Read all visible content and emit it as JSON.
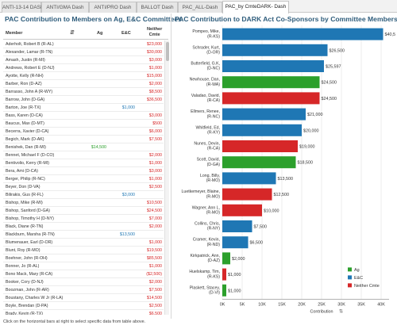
{
  "tabs": [
    {
      "label": "ANTI-13-14 DASH",
      "active": false
    },
    {
      "label": "ANTI/GMA Dash",
      "active": false
    },
    {
      "label": "ANTI/PRO Dash",
      "active": false
    },
    {
      "label": "BALLOT Dash",
      "active": false
    },
    {
      "label": "PAC_ALL-Dash",
      "active": false
    },
    {
      "label": "PAC_by CmteDARK- Dash",
      "active": true
    }
  ],
  "left_panel": {
    "title": "PAC Contribution to Members on Ag, E&C Committees",
    "columns": {
      "member": "Member",
      "ag": "Ag",
      "ec": "E&C",
      "neither": "Neither Cmte"
    },
    "sort_icon": "sort-icon",
    "rows": [
      {
        "name": "Aderholt, Robert B (R-AL)",
        "ag": "",
        "ec": "",
        "neither": "$23,000"
      },
      {
        "name": "Alexander, Lamar (R-TN)",
        "ag": "",
        "ec": "",
        "neither": "$30,000"
      },
      {
        "name": "Amash, Justin (R-MI)",
        "ag": "",
        "ec": "",
        "neither": "$3,000"
      },
      {
        "name": "Andrews, Robert E (D-NJ)",
        "ag": "",
        "ec": "",
        "neither": "$1,000"
      },
      {
        "name": "Ayotte, Kelly (R-NH)",
        "ag": "",
        "ec": "",
        "neither": "$15,000"
      },
      {
        "name": "Barber, Ron (D-AZ)",
        "ag": "",
        "ec": "",
        "neither": "$2,000"
      },
      {
        "name": "Barrasso, John A (R-WY)",
        "ag": "",
        "ec": "",
        "neither": "$8,500"
      },
      {
        "name": "Barrow, John (D-GA)",
        "ag": "",
        "ec": "",
        "neither": "$36,500"
      },
      {
        "name": "Barton, Joe (R-TX)",
        "ag": "",
        "ec": "$1,000",
        "neither": ""
      },
      {
        "name": "Bass, Karen (D-CA)",
        "ag": "",
        "ec": "",
        "neither": "$3,000"
      },
      {
        "name": "Baucus, Max (D-MT)",
        "ag": "",
        "ec": "",
        "neither": "$500"
      },
      {
        "name": "Becerra, Xavier (D-CA)",
        "ag": "",
        "ec": "",
        "neither": "$6,000"
      },
      {
        "name": "Begich, Mark (D-AK)",
        "ag": "",
        "ec": "",
        "neither": "$7,500"
      },
      {
        "name": "Benishek, Dan (R-MI)",
        "ag": "$14,500",
        "ec": "",
        "neither": ""
      },
      {
        "name": "Bennet, Michael F (D-CO)",
        "ag": "",
        "ec": "",
        "neither": "$2,000"
      },
      {
        "name": "Bentivolio, Kerry (R-MI)",
        "ag": "",
        "ec": "",
        "neither": "$1,000"
      },
      {
        "name": "Bera, Ami (D-CA)",
        "ag": "",
        "ec": "",
        "neither": "$3,000"
      },
      {
        "name": "Berger, Philip (R-NC)",
        "ag": "",
        "ec": "",
        "neither": "$1,000"
      },
      {
        "name": "Beyer, Don (D-VA)",
        "ag": "",
        "ec": "",
        "neither": "$2,500"
      },
      {
        "name": "Bilirakis, Gus (R-FL)",
        "ag": "",
        "ec": "$3,000",
        "neither": ""
      },
      {
        "name": "Bishop, Mike (R-MI)",
        "ag": "",
        "ec": "",
        "neither": "$10,500"
      },
      {
        "name": "Bishop, Sanford (D-GA)",
        "ag": "",
        "ec": "",
        "neither": "$24,500"
      },
      {
        "name": "Bishop, Timothy H (D-NY)",
        "ag": "",
        "ec": "",
        "neither": "$7,000"
      },
      {
        "name": "Black, Diane (R-TN)",
        "ag": "",
        "ec": "",
        "neither": "$2,000"
      },
      {
        "name": "Blackburn, Marsha (R-TN)",
        "ag": "",
        "ec": "$13,500",
        "neither": ""
      },
      {
        "name": "Blumenauer, Earl (D-OR)",
        "ag": "",
        "ec": "",
        "neither": "$1,000"
      },
      {
        "name": "Blunt, Roy (R-MO)",
        "ag": "",
        "ec": "",
        "neither": "$19,500"
      },
      {
        "name": "Boehner, John (R-OH)",
        "ag": "",
        "ec": "",
        "neither": "$85,500"
      },
      {
        "name": "Bonner, Jo (R-AL)",
        "ag": "",
        "ec": "",
        "neither": "$1,000"
      },
      {
        "name": "Bono Mack, Mary (R-CA)",
        "ag": "",
        "ec": "",
        "neither": "($2,500)"
      },
      {
        "name": "Booker, Cory (D-NJ)",
        "ag": "",
        "ec": "",
        "neither": "$2,000"
      },
      {
        "name": "Boozman, John (R-AR)",
        "ag": "",
        "ec": "",
        "neither": "$7,500"
      },
      {
        "name": "Boustany, Charles W Jr (R-LA)",
        "ag": "",
        "ec": "",
        "neither": "$14,500"
      },
      {
        "name": "Boyle, Brendan (D-PA)",
        "ag": "",
        "ec": "",
        "neither": "$2,500"
      },
      {
        "name": "Brady, Kevin (R-TX)",
        "ag": "",
        "ec": "",
        "neither": "$6,500"
      },
      {
        "name": "Brady, Robert A (D-PA)",
        "ag": "",
        "ec": "",
        "neither": "$1,000"
      }
    ]
  },
  "right_panel": {
    "title": "PAC Contribution to DARK Act Co-Sponsors by Committee Membership"
  },
  "chart_data": {
    "type": "bar",
    "orientation": "horizontal",
    "categories": [
      "Pompeo, Mike (R-KS)",
      "Schrader, Kurt (D-OR)",
      "Butterfield, G.K (D-NC)",
      "Newhouse, Dan (R-WA)",
      "Valadao, David (R-CA)",
      "Ellmers, Renee (R-NC)",
      "Whitfield, Ed (R-KY)",
      "Nunes, Devin (R-CA)",
      "Scott, David (D-GA)",
      "Long, Billy (R-MO)",
      "Luetkemeyer, Blaine (R-MO)",
      "Wagner, Ann L (R-MO)",
      "Collins, Chris (R-NY)",
      "Cramer, Kevin (R-ND)",
      "Kirkpatrick, Ann (D-AZ)",
      "Huelskamp, Tim (R-KS)",
      "Plaskett, Stacey (D-VI)"
    ],
    "values": [
      40500,
      26500,
      25597,
      24500,
      24500,
      21000,
      20000,
      19000,
      18500,
      13500,
      12500,
      10000,
      7500,
      6500,
      2000,
      1000,
      1000
    ],
    "value_labels": [
      "$40,500",
      "$26,500",
      "$25,597",
      "$24,500",
      "$24,500",
      "$21,000",
      "$20,000",
      "$19,000",
      "$18,500",
      "$13,500",
      "$12,500",
      "$10,000",
      "$7,500",
      "$6,500",
      "$2,000",
      "$1,000",
      "$1,000"
    ],
    "committee": [
      "E&C",
      "E&C",
      "E&C",
      "Ag",
      "Neither Cmte",
      "E&C",
      "E&C",
      "Neither Cmte",
      "Ag",
      "E&C",
      "Neither Cmte",
      "Neither Cmte",
      "E&C",
      "E&C",
      "Ag",
      "Neither Cmte",
      "Ag"
    ],
    "series_colors": {
      "Ag": "#2ca02c",
      "E&C": "#1f77b4",
      "Neither Cmte": "#d62728"
    },
    "legend": [
      "Ag",
      "E&C",
      "Neither Cmte"
    ],
    "legend_position": "bottom-right",
    "xlabel": "Contribution",
    "xticks": [
      0,
      5000,
      10000,
      15000,
      20000,
      25000,
      30000,
      35000,
      40000
    ],
    "xtick_labels": [
      "0K",
      "5K",
      "10K",
      "15K",
      "20K",
      "25K",
      "30K",
      "35K",
      "40K"
    ],
    "xlim": [
      0,
      42000
    ],
    "grid": true
  },
  "footer": {
    "note": "Click on the horizontal bars at right to select specific data from table above."
  }
}
